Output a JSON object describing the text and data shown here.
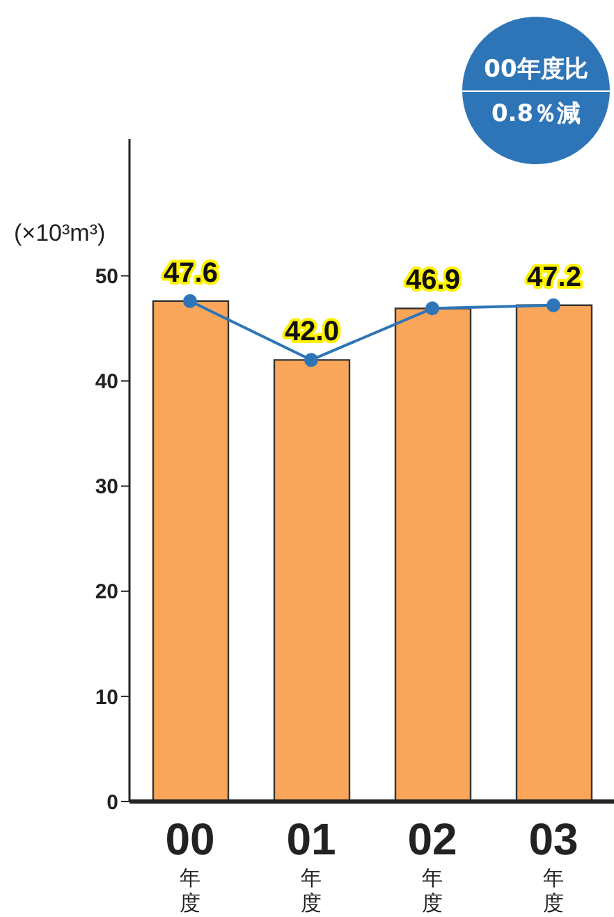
{
  "chart_data": {
    "type": "bar",
    "ylabel": "(×10³m³)",
    "categories": [
      "00年度",
      "01年度",
      "02年度",
      "03年度"
    ],
    "series": [
      {
        "color": "#f9a65a",
        "values": [
          47.6,
          42.0,
          46.9,
          47.2
        ],
        "value_labels": [
          "47.6",
          "42.0",
          "46.9",
          "47.2"
        ]
      },
      {
        "type": "line",
        "color": "#2e75b8",
        "values": [
          47.6,
          42.0,
          46.9,
          47.2
        ],
        "marker": "circle"
      }
    ],
    "ylim": [
      0,
      63
    ],
    "yticks": [
      0,
      10,
      20,
      30,
      40,
      50
    ],
    "grid": false,
    "legend": false,
    "annotations": [
      "00年度比",
      "0.8％減"
    ]
  }
}
